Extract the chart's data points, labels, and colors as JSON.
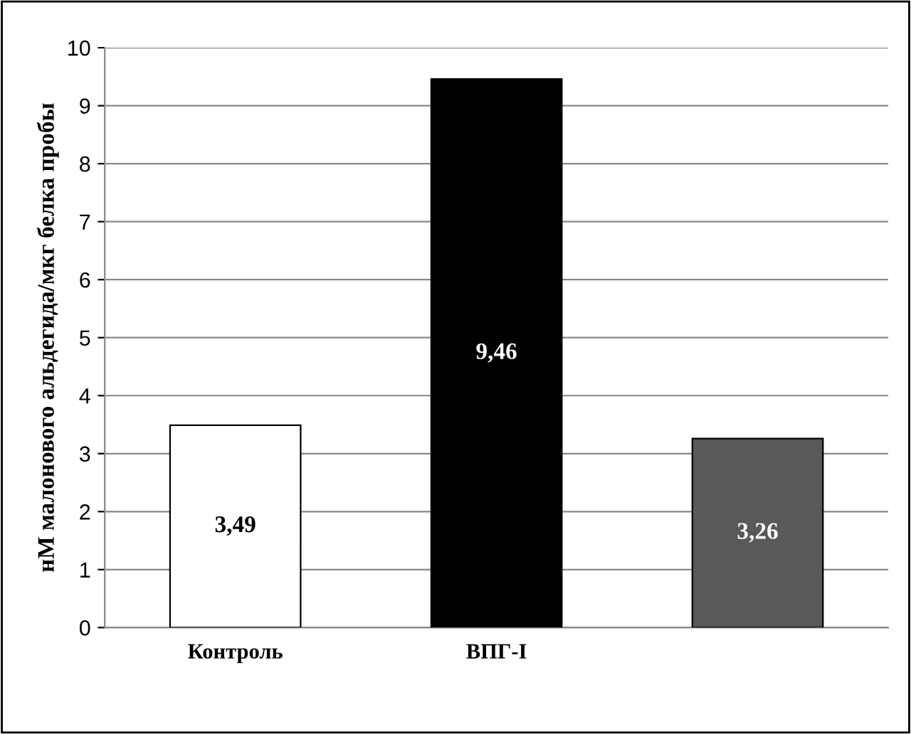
{
  "chart_data": {
    "type": "bar",
    "ylabel": "нМ малонового альдегида/мкг белка пробы",
    "categories": [
      "Контроль",
      "ВПГ-I",
      null
    ],
    "values": [
      3.49,
      9.46,
      3.26
    ],
    "colors": [
      "#ffffff",
      "#000000",
      "#595959"
    ],
    "value_labels": [
      "3,49",
      "9,46",
      "3,26"
    ],
    "ylim": [
      0,
      10
    ],
    "yticks": [
      0,
      1,
      2,
      3,
      4,
      5,
      6,
      7,
      8,
      9,
      10
    ],
    "grid": "y",
    "legend": false
  }
}
